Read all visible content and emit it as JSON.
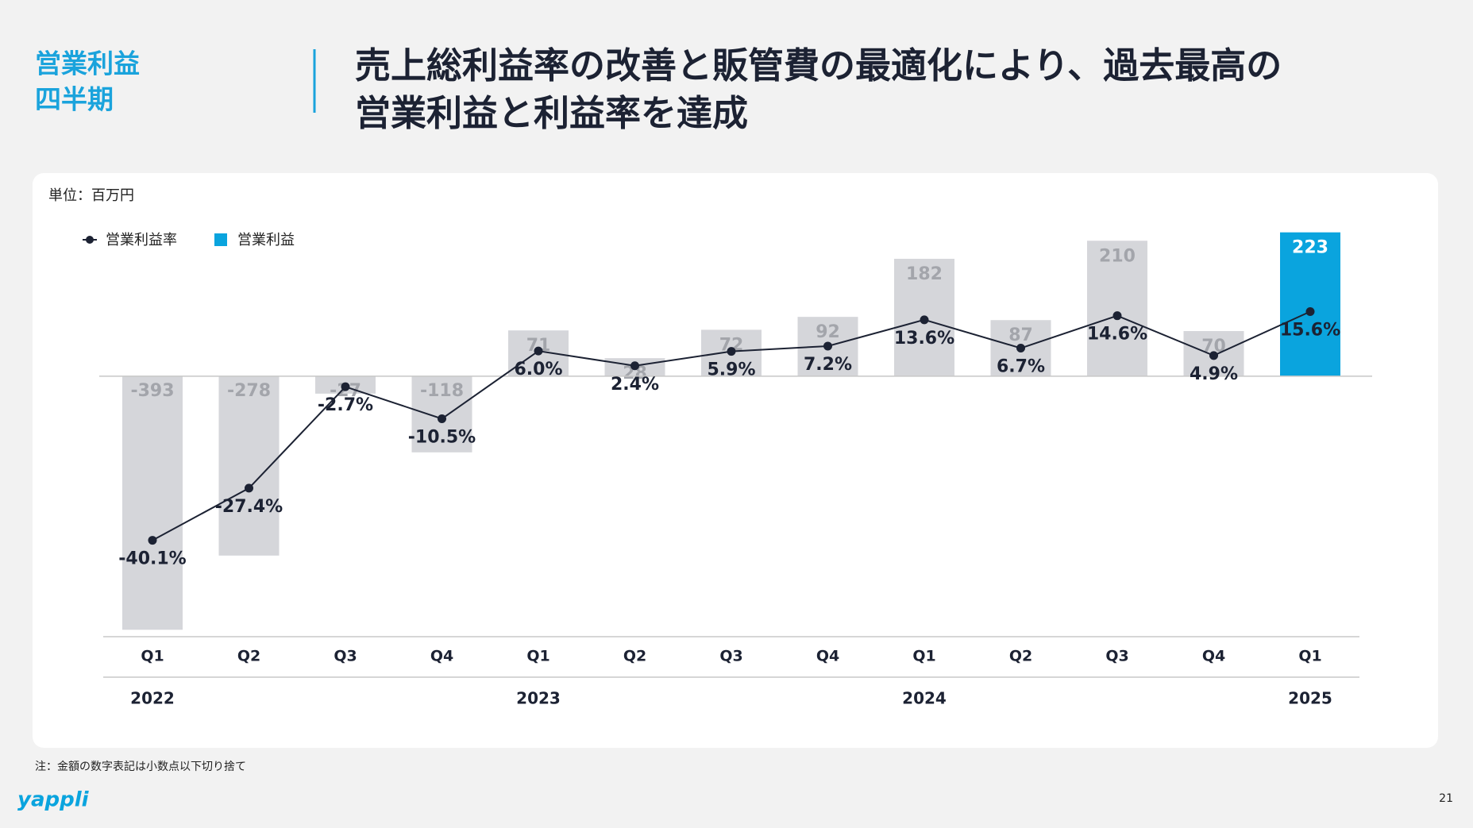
{
  "header": {
    "section": [
      "営業利益",
      "四半期"
    ],
    "title": [
      "売上総利益率の改善と販管費の最適化により、過去最高の",
      "営業利益と利益率を達成"
    ]
  },
  "chart_data": {
    "type": "bar_line",
    "unit_label": "単位：百万円",
    "categories": [
      "Q1",
      "Q2",
      "Q3",
      "Q4",
      "Q1",
      "Q2",
      "Q3",
      "Q4",
      "Q1",
      "Q2",
      "Q3",
      "Q4",
      "Q1"
    ],
    "x_groups": [
      "2022",
      null,
      null,
      null,
      "2023",
      null,
      null,
      null,
      "2024",
      null,
      null,
      null,
      "2025"
    ],
    "series": [
      {
        "name": "営業利益率",
        "type": "line",
        "axis": "y2",
        "color": "#1c2233",
        "values": [
          -40.1,
          -27.4,
          -2.7,
          -10.5,
          6.0,
          2.4,
          5.9,
          7.2,
          13.6,
          6.7,
          14.6,
          4.9,
          15.6
        ],
        "value_labels": [
          "-40.1%",
          "-27.4%",
          "-2.7%",
          "-10.5%",
          "6.0%",
          "2.4%",
          "5.9%",
          "7.2%",
          "13.6%",
          "6.7%",
          "14.6%",
          "4.9%",
          "15.6%"
        ]
      },
      {
        "name": "営業利益",
        "type": "bar",
        "color": "#0aa4de",
        "values": [
          -393,
          -278,
          -27,
          -118,
          71,
          28,
          72,
          92,
          182,
          87,
          210,
          70,
          223
        ],
        "bar_colors": [
          "#d5d6da",
          "#d5d6da",
          "#d5d6da",
          "#d5d6da",
          "#d5d6da",
          "#d5d6da",
          "#d5d6da",
          "#d5d6da",
          "#d5d6da",
          "#d5d6da",
          "#d5d6da",
          "#d5d6da",
          "#0aa4de"
        ]
      }
    ],
    "ylim": [
      -400,
      230
    ],
    "y2lim": [
      -63,
      36
    ]
  },
  "footnote": "注：金額の数字表記は小数点以下切り捨て",
  "logo": "yappli",
  "page_number": "21"
}
